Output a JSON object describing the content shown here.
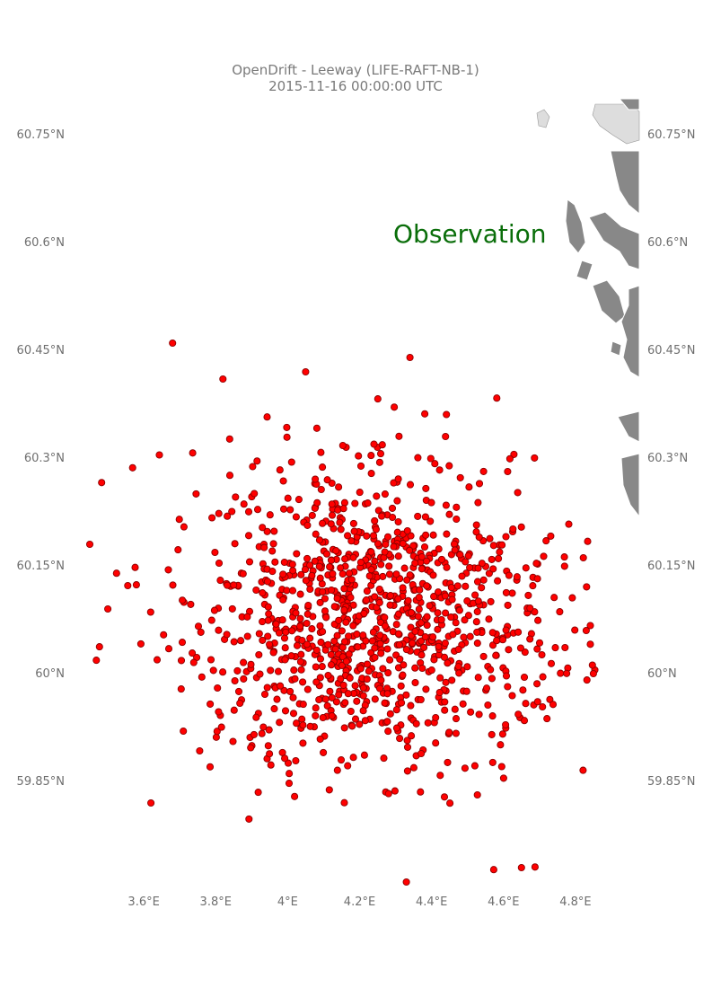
{
  "figure": {
    "title_line1": "OpenDrift - Leeway (LIFE-RAFT-NB-1)",
    "title_line2": "2015-11-16 00:00:00 UTC",
    "observation_label": "Observation",
    "particle_color": "#ff0000",
    "land_color": "#888888",
    "observation_color": "#0a6e0a"
  },
  "chart_data": {
    "type": "scatter",
    "title": "OpenDrift - Leeway (LIFE-RAFT-NB-1)",
    "subtitle": "2015-11-16 00:00:00 UTC",
    "xlim": [
      3.4,
      4.98
    ],
    "ylim": [
      59.7,
      60.8
    ],
    "x_ticks": [
      {
        "value": 3.6,
        "label": "3.6°E"
      },
      {
        "value": 3.8,
        "label": "3.8°E"
      },
      {
        "value": 4.0,
        "label": "4°E"
      },
      {
        "value": 4.2,
        "label": "4.2°E"
      },
      {
        "value": 4.4,
        "label": "4.4°E"
      },
      {
        "value": 4.6,
        "label": "4.6°E"
      },
      {
        "value": 4.8,
        "label": "4.8°E"
      }
    ],
    "y_ticks": [
      {
        "value": 59.85,
        "label": "59.85°N"
      },
      {
        "value": 60.0,
        "label": "60°N"
      },
      {
        "value": 60.15,
        "label": "60.15°N"
      },
      {
        "value": 60.3,
        "label": "60.3°N"
      },
      {
        "value": 60.45,
        "label": "60.45°N"
      },
      {
        "value": 60.6,
        "label": "60.6°N"
      },
      {
        "value": 60.75,
        "label": "60.75°N"
      }
    ],
    "cloud": {
      "center_lon": 4.25,
      "center_lat": 60.08,
      "count": 1100
    },
    "outliers": [
      {
        "lon": 3.68,
        "lat": 60.46
      },
      {
        "lon": 3.45,
        "lat": 60.18
      },
      {
        "lon": 3.5,
        "lat": 60.09
      },
      {
        "lon": 3.62,
        "lat": 59.82
      },
      {
        "lon": 4.85,
        "lat": 60.0
      },
      {
        "lon": 4.83,
        "lat": 60.06
      },
      {
        "lon": 4.34,
        "lat": 60.44
      },
      {
        "lon": 4.65,
        "lat": 59.73
      },
      {
        "lon": 4.33,
        "lat": 59.71
      },
      {
        "lon": 4.05,
        "lat": 60.42
      },
      {
        "lon": 3.82,
        "lat": 60.41
      }
    ]
  }
}
